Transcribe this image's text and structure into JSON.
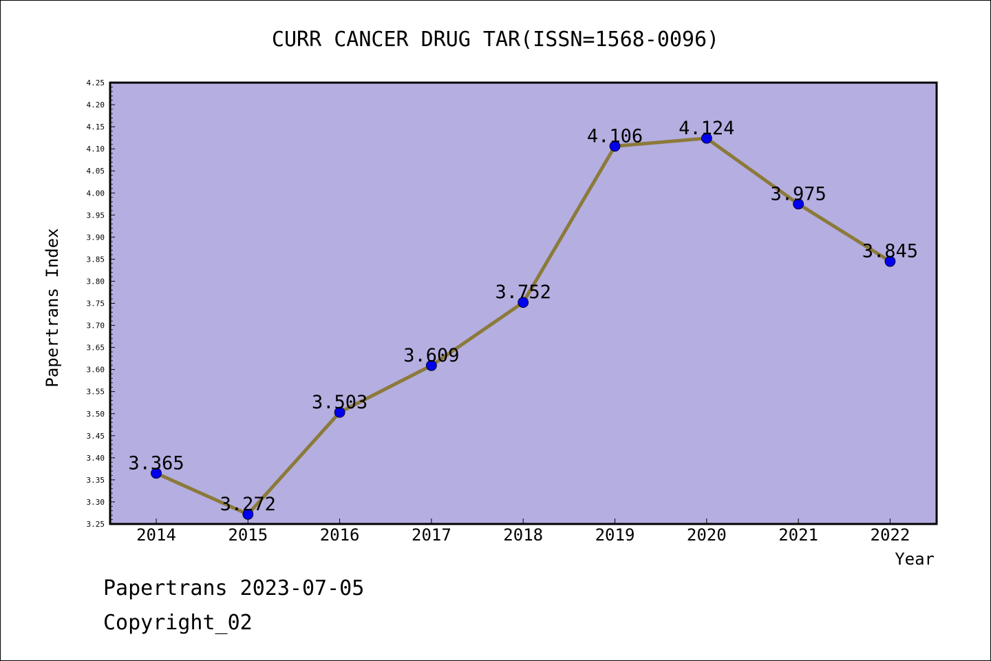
{
  "chart_data": {
    "type": "line",
    "title": "CURR CANCER DRUG TAR(ISSN=1568-0096)",
    "xlabel": "Year",
    "ylabel": "Papertrans Index",
    "x": [
      "2014",
      "2015",
      "2016",
      "2017",
      "2018",
      "2019",
      "2020",
      "2021",
      "2022"
    ],
    "values": [
      3.365,
      3.272,
      3.503,
      3.609,
      3.752,
      4.106,
      4.124,
      3.975,
      3.845
    ],
    "data_labels": [
      "3.365",
      "3.272",
      "3.503",
      "3.609",
      "3.752",
      "4.106",
      "4.124",
      "3.975",
      "3.845"
    ],
    "ylim": [
      3.25,
      4.25
    ],
    "yticks": [
      "3.25",
      "3.30",
      "3.35",
      "3.40",
      "3.45",
      "3.50",
      "3.55",
      "3.60",
      "3.65",
      "3.70",
      "3.75",
      "3.80",
      "3.85",
      "3.90",
      "3.95",
      "4.00",
      "4.05",
      "4.10",
      "4.15",
      "4.20",
      "4.25"
    ],
    "grid": false,
    "colors": {
      "plot_background": "#b5aee1",
      "line": "#8b7a3a",
      "marker": "#0000ee"
    }
  },
  "footer": {
    "line1": "Papertrans 2023-07-05",
    "line2": "Copyright_02"
  }
}
